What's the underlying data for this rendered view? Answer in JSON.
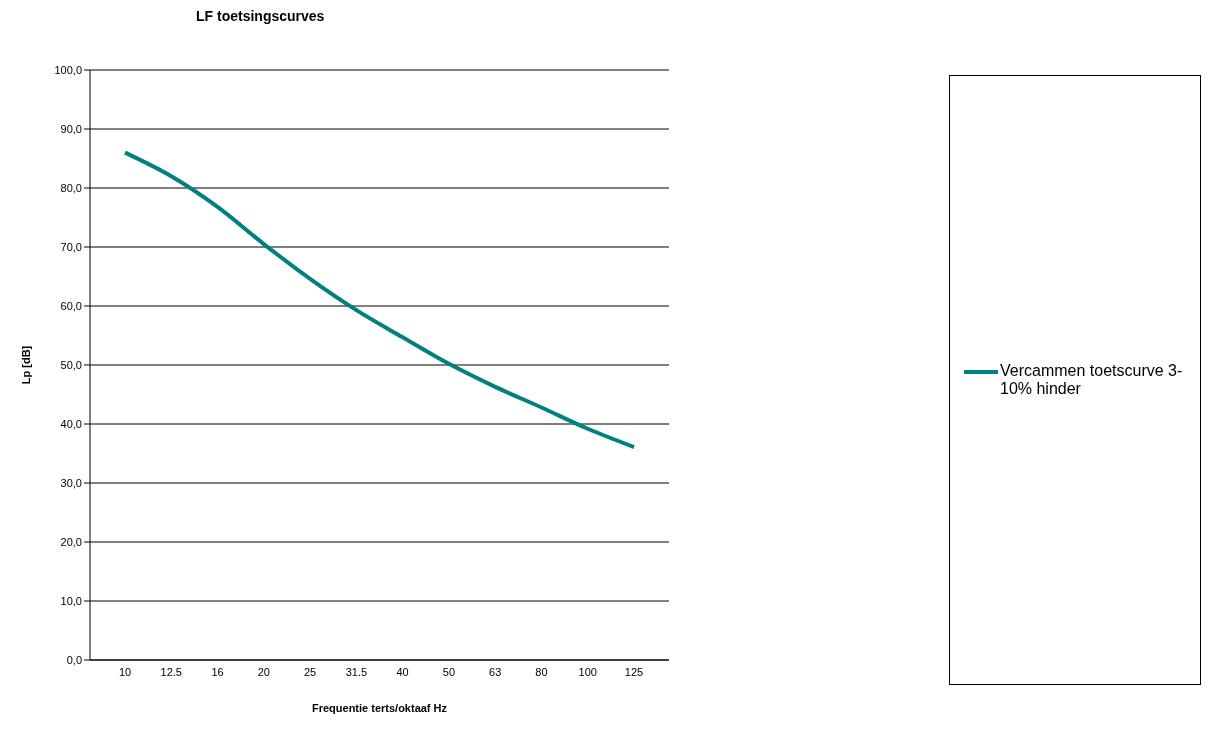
{
  "chart_data": {
    "type": "line",
    "title": "LF toetsingscurves",
    "xlabel": "Frequentie terts/oktaaf Hz",
    "ylabel": "Lp [dB]",
    "categories": [
      "10",
      "12.5",
      "16",
      "20",
      "25",
      "31.5",
      "40",
      "50",
      "63",
      "80",
      "100",
      "125"
    ],
    "series": [
      {
        "name": "Vercammen toetscurve 3-10% hinder",
        "color": "#008080",
        "values": [
          86.0,
          82.0,
          76.8,
          70.5,
          64.6,
          59.3,
          54.7,
          50.2,
          46.3,
          42.8,
          39.2,
          36.1
        ]
      }
    ],
    "ylim": [
      0,
      100
    ],
    "yticks": [
      {
        "value": 0,
        "label": "0,0"
      },
      {
        "value": 10,
        "label": "10,0"
      },
      {
        "value": 20,
        "label": "20,0"
      },
      {
        "value": 30,
        "label": "30,0"
      },
      {
        "value": 40,
        "label": "40,0"
      },
      {
        "value": 50,
        "label": "50,0"
      },
      {
        "value": 60,
        "label": "60,0"
      },
      {
        "value": 70,
        "label": "70,0"
      },
      {
        "value": 80,
        "label": "80,0"
      },
      {
        "value": 90,
        "label": "90,0"
      },
      {
        "value": 100,
        "label": "100,0"
      }
    ],
    "grid": "y",
    "legend": "right",
    "marker": "none",
    "line_style": "solid"
  }
}
